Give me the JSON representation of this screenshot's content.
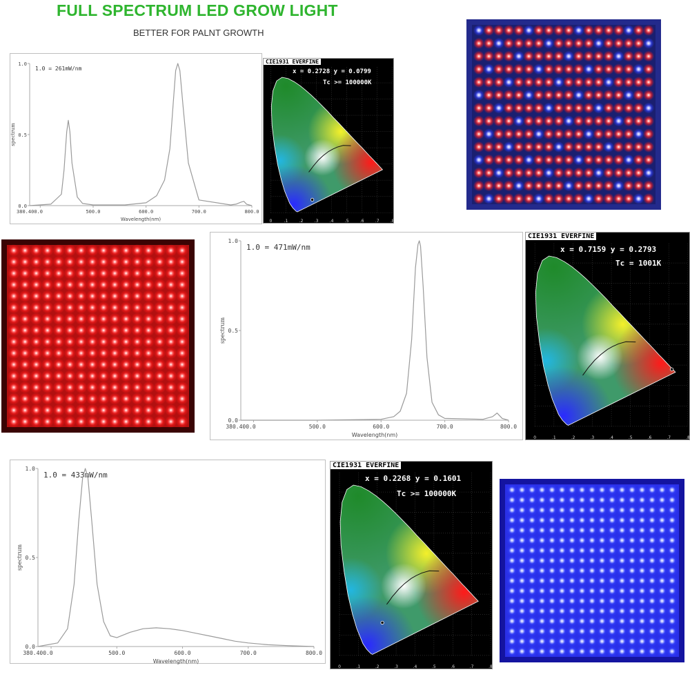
{
  "header": {
    "title": "FULL SPECTRUM LED GROW LIGHT",
    "subtitle": "BETTER FOR PALNT GROWTH"
  },
  "colors": {
    "title_green": "#2fb52f",
    "red_led": "#ff3030",
    "blue_led": "#3c46ff",
    "spectrum_line": "#9a9a9a"
  },
  "chart_data": [
    {
      "type": "line",
      "title": "",
      "annotation": "1.0 = 261mW/nm",
      "xlabel": "Wavelength(nm)",
      "ylabel": "spectrum",
      "xlim": [
        380,
        800
      ],
      "ylim": [
        0,
        1
      ],
      "xticks": [
        "380.400.0",
        "500.0",
        "600.0",
        "700.0",
        "800.0"
      ],
      "yticks": [
        "0.0",
        "0.5",
        "1.0"
      ],
      "grid": false,
      "x": [
        380,
        420,
        440,
        445,
        450,
        453,
        456,
        460,
        470,
        480,
        500,
        560,
        600,
        620,
        635,
        645,
        652,
        656,
        660,
        664,
        670,
        680,
        700,
        760,
        770,
        780,
        785,
        790,
        800
      ],
      "y": [
        0.0,
        0.01,
        0.08,
        0.25,
        0.52,
        0.6,
        0.52,
        0.3,
        0.06,
        0.015,
        0.005,
        0.005,
        0.02,
        0.07,
        0.18,
        0.4,
        0.75,
        0.95,
        1.0,
        0.95,
        0.7,
        0.3,
        0.04,
        0.005,
        0.01,
        0.025,
        0.03,
        0.01,
        0.0
      ]
    },
    {
      "type": "line",
      "title": "",
      "annotation": "1.0 = 471mW/nm",
      "xlabel": "Wavelength(nm)",
      "ylabel": "spectrum",
      "xlim": [
        380,
        800
      ],
      "ylim": [
        0,
        1
      ],
      "xticks": [
        "380.400.0",
        "500.0",
        "600.0",
        "700.0",
        "800.0"
      ],
      "yticks": [
        "0.0",
        "0.5",
        "1.0"
      ],
      "grid": false,
      "x": [
        380,
        500,
        600,
        620,
        630,
        640,
        648,
        654,
        658,
        660,
        662,
        666,
        672,
        680,
        690,
        700,
        760,
        775,
        782,
        790,
        800
      ],
      "y": [
        0.0,
        0.0,
        0.005,
        0.02,
        0.05,
        0.15,
        0.45,
        0.85,
        0.98,
        1.0,
        0.97,
        0.75,
        0.35,
        0.1,
        0.03,
        0.01,
        0.005,
        0.02,
        0.04,
        0.01,
        0.0
      ]
    },
    {
      "type": "line",
      "title": "",
      "annotation": "1.0 = 433mW/nm",
      "xlabel": "Wavelength(nm)",
      "ylabel": "spectrum",
      "xlim": [
        380,
        800
      ],
      "ylim": [
        0,
        1
      ],
      "xticks": [
        "380.400.0",
        "500.0",
        "600.0",
        "700.0",
        "800.0"
      ],
      "yticks": [
        "0.0",
        "0.5",
        "1.0"
      ],
      "grid": false,
      "x": [
        380,
        410,
        425,
        435,
        442,
        448,
        452,
        456,
        462,
        470,
        480,
        490,
        500,
        520,
        540,
        560,
        580,
        600,
        620,
        640,
        660,
        680,
        700,
        730,
        760,
        800
      ],
      "y": [
        0.0,
        0.02,
        0.1,
        0.35,
        0.7,
        0.95,
        1.0,
        0.95,
        0.7,
        0.35,
        0.14,
        0.06,
        0.05,
        0.08,
        0.1,
        0.105,
        0.1,
        0.09,
        0.075,
        0.06,
        0.045,
        0.03,
        0.02,
        0.01,
        0.005,
        0.0
      ]
    }
  ],
  "cie_charts": [
    {
      "title": "CIE1931 EVERFINE",
      "xy": "x = 0.2728 y = 0.0799",
      "tc": "Tc >= 100000K",
      "point": [
        0.2728,
        0.0799
      ]
    },
    {
      "title": "CIE1931 EVERFINE",
      "xy": "x = 0.7159 y = 0.2793",
      "tc": "Tc = 1001K",
      "point": [
        0.7159,
        0.2793
      ]
    },
    {
      "title": "CIE1931 EVERFINE",
      "xy": "x = 0.2268 y = 0.1601",
      "tc": "Tc >= 100000K",
      "point": [
        0.2268,
        0.1601
      ]
    }
  ],
  "led_panels": [
    {
      "name": "mixed-red-blue",
      "background": "#232a8c",
      "led_rows": 14,
      "led_cols": 18,
      "pattern": "mixed"
    },
    {
      "name": "red",
      "background": "#3a0404",
      "led_rows": 16,
      "led_cols": 16,
      "pattern": "red"
    },
    {
      "name": "blue",
      "background": "#1414a0",
      "led_rows": 17,
      "led_cols": 17,
      "pattern": "blue"
    }
  ]
}
